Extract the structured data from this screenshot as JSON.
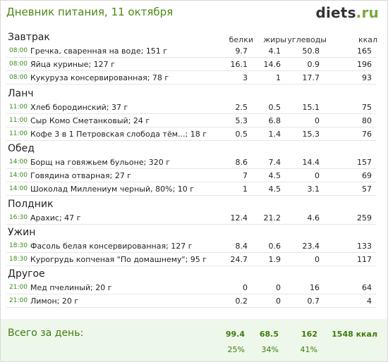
{
  "header": {
    "title": "Дневник питания, 11 октября",
    "logo_main": "diets",
    "logo_dot": ".",
    "logo_tld": "ru"
  },
  "columns": [
    "белки",
    "жиры",
    "углеводы",
    "ккал"
  ],
  "meals": [
    {
      "title": "Завтрак",
      "items": [
        {
          "time": "08:00",
          "name": "Гречка, сваренная на воде; 151 г",
          "protein": "9.7",
          "fat": "4.1",
          "carbs": "50.8",
          "kcal": "165"
        },
        {
          "time": "08:00",
          "name": "Яйца куриные; 127 г",
          "protein": "16.1",
          "fat": "14.6",
          "carbs": "0.9",
          "kcal": "196"
        },
        {
          "time": "08:00",
          "name": "Кукуруза консервированная; 78 г",
          "protein": "3",
          "fat": "1",
          "carbs": "17.7",
          "kcal": "93"
        }
      ]
    },
    {
      "title": "Ланч",
      "items": [
        {
          "time": "11:00",
          "name": "Хлеб бородинский; 37 г",
          "protein": "2.5",
          "fat": "0.5",
          "carbs": "15.1",
          "kcal": "75"
        },
        {
          "time": "11:00",
          "name": "Сыр Комо Сметанковый; 24 г",
          "protein": "5.3",
          "fat": "6.8",
          "carbs": "0",
          "kcal": "80"
        },
        {
          "time": "11:00",
          "name": "Кофе 3 в 1 Петровская слобода тём...; 18 г",
          "protein": "0.5",
          "fat": "1.4",
          "carbs": "15.3",
          "kcal": "76"
        }
      ]
    },
    {
      "title": "Обед",
      "items": [
        {
          "time": "14:00",
          "name": "Борщ на говяжьем бульоне; 320 г",
          "protein": "8.6",
          "fat": "7.4",
          "carbs": "14.4",
          "kcal": "157"
        },
        {
          "time": "14:00",
          "name": "Говядина отварная; 27 г",
          "protein": "7",
          "fat": "4.5",
          "carbs": "0",
          "kcal": "69"
        },
        {
          "time": "14:00",
          "name": "Шоколад Миллениум черный, 80%; 10 г",
          "protein": "1",
          "fat": "4.5",
          "carbs": "3.1",
          "kcal": "57"
        }
      ]
    },
    {
      "title": "Полдник",
      "items": [
        {
          "time": "16:30",
          "name": "Арахис; 47 г",
          "protein": "12.4",
          "fat": "21.2",
          "carbs": "4.6",
          "kcal": "259"
        }
      ]
    },
    {
      "title": "Ужин",
      "items": [
        {
          "time": "18:30",
          "name": "Фасоль белая консервированная; 127 г",
          "protein": "8.4",
          "fat": "0.6",
          "carbs": "23.4",
          "kcal": "133"
        },
        {
          "time": "18:30",
          "name": "Курогрудь копченая \"По домашнему\"; 95 г",
          "protein": "24.7",
          "fat": "1.9",
          "carbs": "0",
          "kcal": "117"
        }
      ]
    },
    {
      "title": "Другое",
      "items": [
        {
          "time": "21:00",
          "name": "Мед пчелиный; 20 г",
          "protein": "0",
          "fat": "0",
          "carbs": "16",
          "kcal": "64"
        },
        {
          "time": "21:00",
          "name": "Лимон; 20 г",
          "protein": "0.2",
          "fat": "0",
          "carbs": "0.7",
          "kcal": "4"
        }
      ]
    }
  ],
  "totals": {
    "label": "Всего за день:",
    "protein": "99.4",
    "fat": "68.5",
    "carbs": "162",
    "kcal": "1548 ккал",
    "protein_pct": "25%",
    "fat_pct": "34%",
    "carbs_pct": "41%"
  }
}
